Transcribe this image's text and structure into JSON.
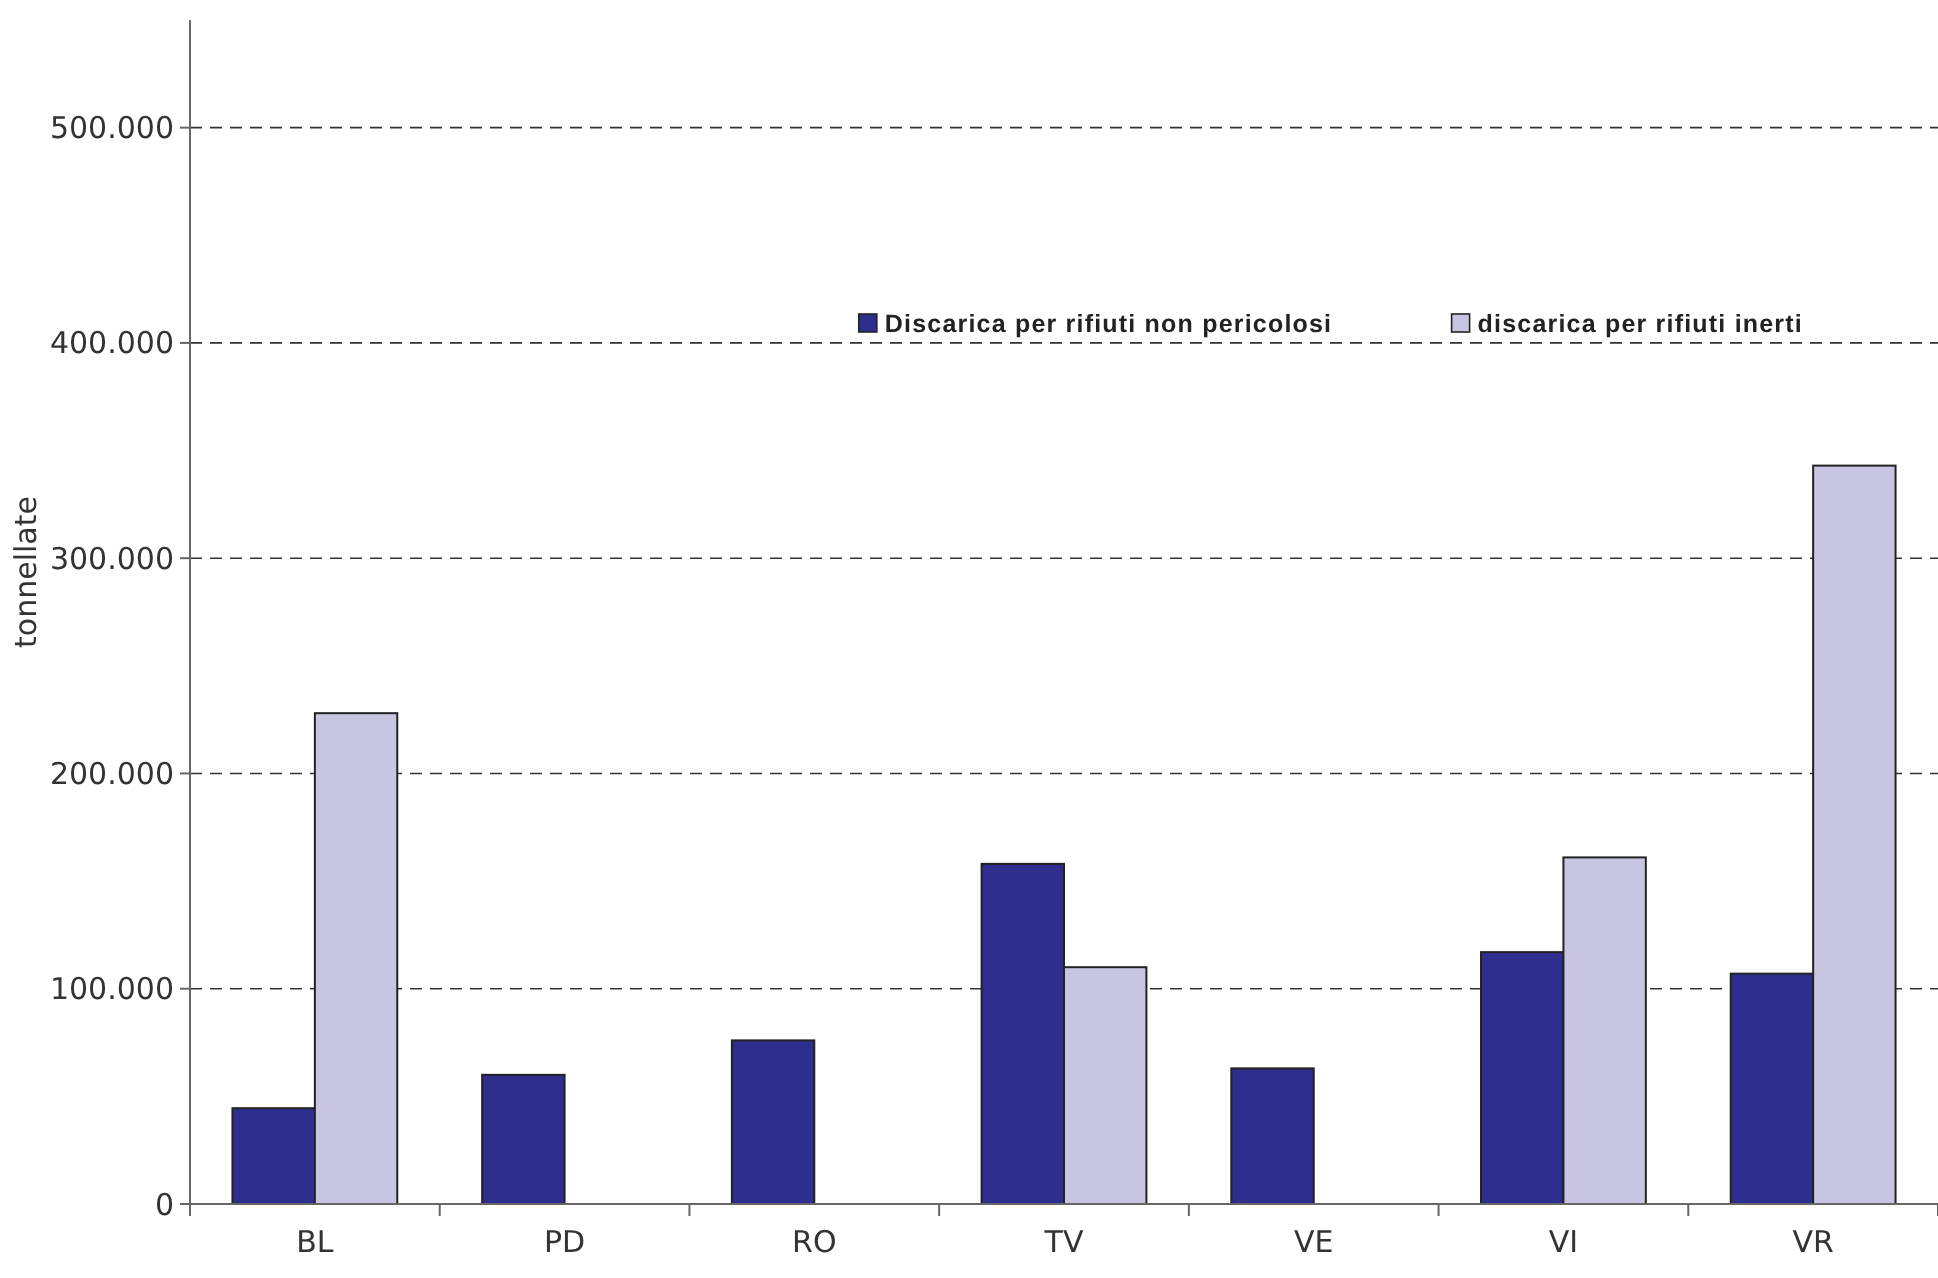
{
  "chart_data": {
    "type": "bar",
    "ylabel": "tonnellate",
    "categories": [
      "BL",
      "PD",
      "RO",
      "TV",
      "VE",
      "VI",
      "VR"
    ],
    "series": [
      {
        "name": "Discarica per rifiuti non pericolosi",
        "color": "#2e2e8f",
        "values": [
          44500,
          60000,
          76000,
          158000,
          63000,
          117000,
          107000
        ]
      },
      {
        "name": "discarica per rifiuti inerti",
        "color": "#c8c5e2",
        "values": [
          228000,
          null,
          null,
          110000,
          null,
          161000,
          343000
        ]
      }
    ],
    "ylim": [
      0,
      550000
    ],
    "yticks": [
      0,
      {
        "value": 100000,
        "label": "100.000"
      },
      {
        "value": 200000,
        "label": "200.000"
      },
      {
        "value": 300000,
        "label": "300.000"
      },
      {
        "value": 400000,
        "label": "400.000"
      },
      {
        "value": 500000,
        "label": "500.000"
      }
    ],
    "grid": "y",
    "legend": "top right"
  }
}
